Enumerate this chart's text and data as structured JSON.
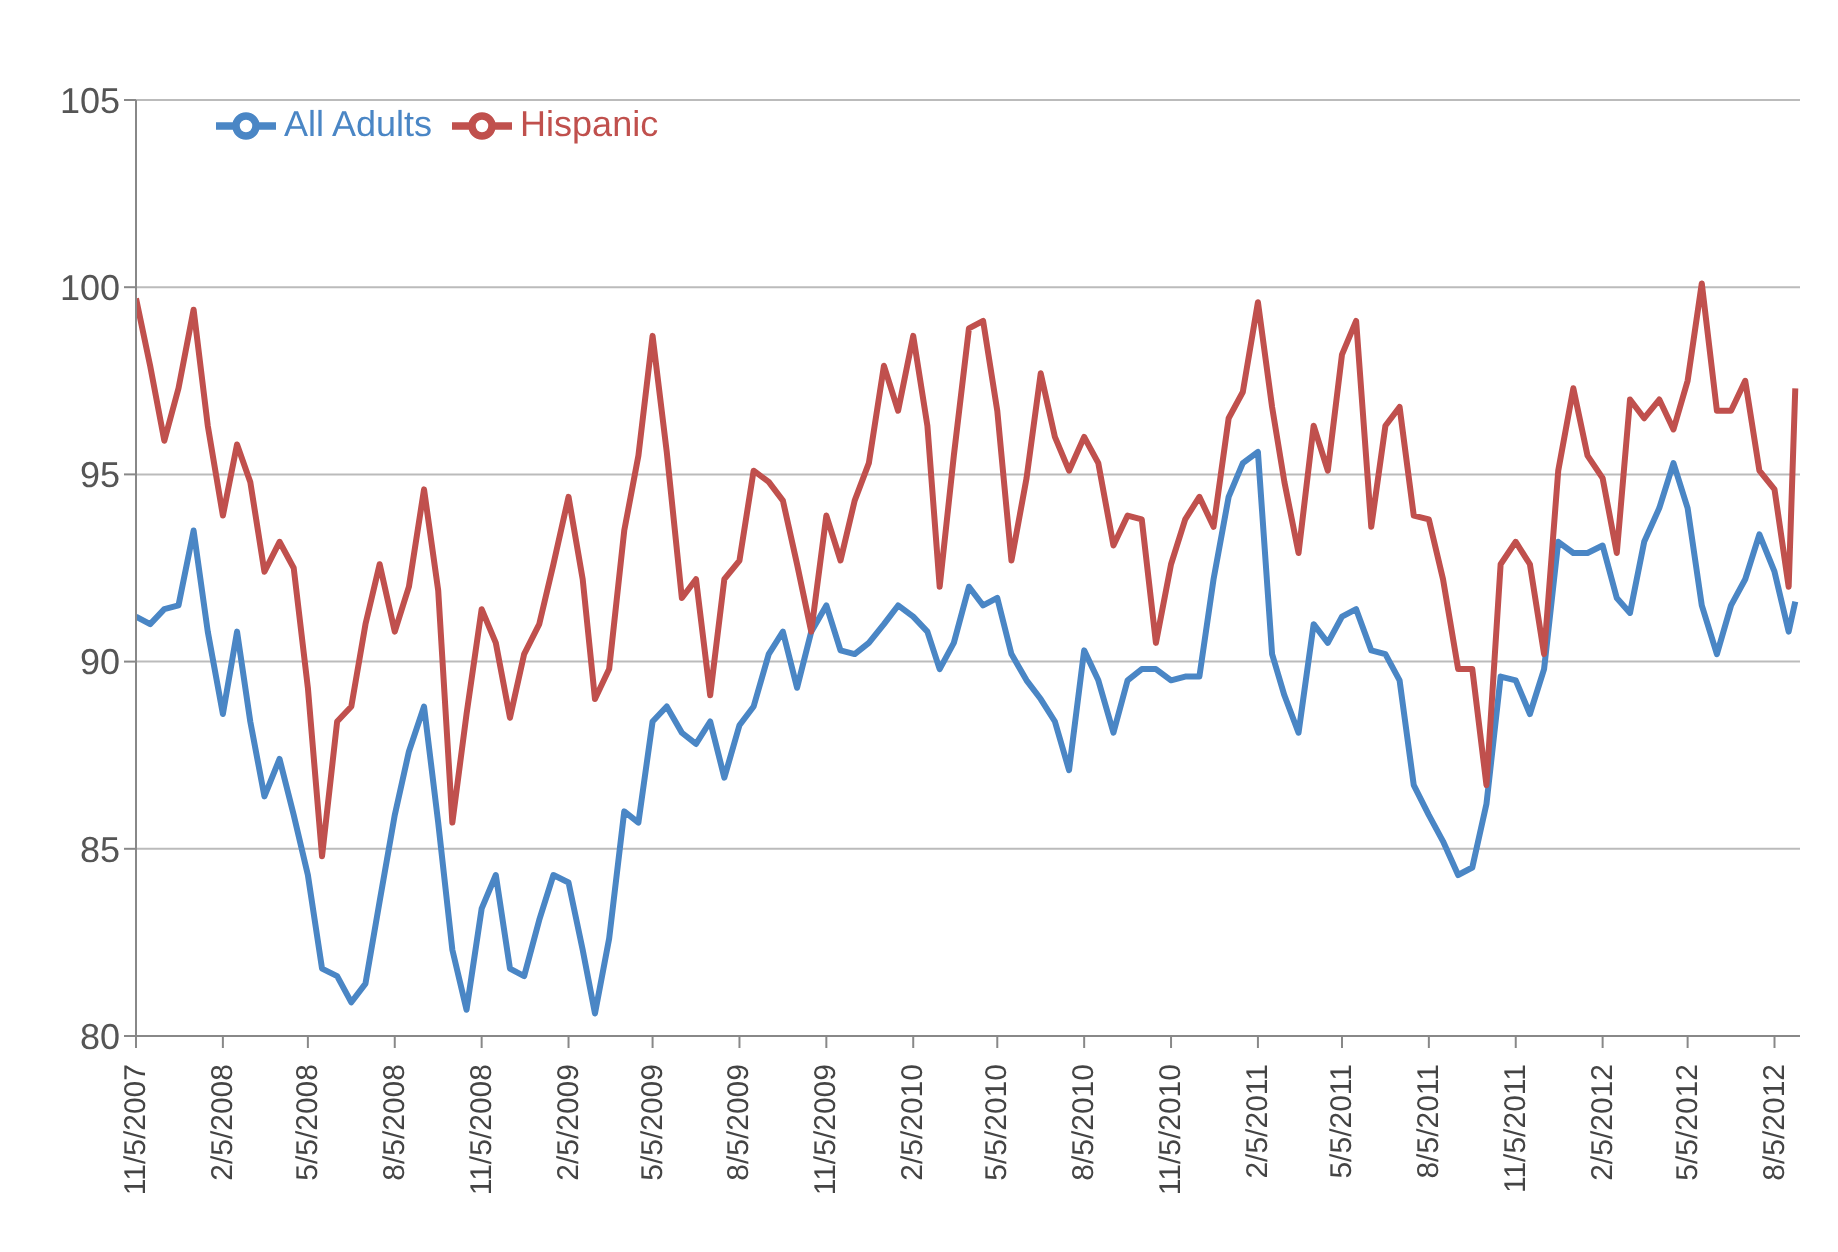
{
  "chart_data": {
    "type": "line",
    "marker": "none",
    "line_style": "solid",
    "grid": "y",
    "legend": "top left",
    "x": [
      "2007-11-05",
      "2007-11-20",
      "2007-12-05",
      "2007-12-20",
      "2008-01-05",
      "2008-01-20",
      "2008-02-05",
      "2008-02-20",
      "2008-03-05",
      "2008-03-20",
      "2008-04-05",
      "2008-04-20",
      "2008-05-05",
      "2008-05-20",
      "2008-06-05",
      "2008-06-20",
      "2008-07-05",
      "2008-07-20",
      "2008-08-05",
      "2008-08-20",
      "2008-09-05",
      "2008-09-20",
      "2008-10-05",
      "2008-10-20",
      "2008-11-05",
      "2008-11-20",
      "2008-12-05",
      "2008-12-20",
      "2009-01-05",
      "2009-01-20",
      "2009-02-05",
      "2009-02-20",
      "2009-03-05",
      "2009-03-20",
      "2009-04-05",
      "2009-04-20",
      "2009-05-05",
      "2009-05-20",
      "2009-06-05",
      "2009-06-20",
      "2009-07-05",
      "2009-07-20",
      "2009-08-05",
      "2009-08-20",
      "2009-09-05",
      "2009-09-20",
      "2009-10-05",
      "2009-10-20",
      "2009-11-05",
      "2009-11-20",
      "2009-12-05",
      "2009-12-20",
      "2010-01-05",
      "2010-01-20",
      "2010-02-05",
      "2010-02-20",
      "2010-03-05",
      "2010-03-20",
      "2010-04-05",
      "2010-04-20",
      "2010-05-05",
      "2010-05-20",
      "2010-06-05",
      "2010-06-20",
      "2010-07-05",
      "2010-07-20",
      "2010-08-05",
      "2010-08-20",
      "2010-09-05",
      "2010-09-20",
      "2010-10-05",
      "2010-10-20",
      "2010-11-05",
      "2010-11-20",
      "2010-12-05",
      "2010-12-20",
      "2011-01-05",
      "2011-01-20",
      "2011-02-05",
      "2011-02-20",
      "2011-03-05",
      "2011-03-20",
      "2011-04-05",
      "2011-04-20",
      "2011-05-05",
      "2011-05-20",
      "2011-06-05",
      "2011-06-20",
      "2011-07-05",
      "2011-07-20",
      "2011-08-05",
      "2011-08-20",
      "2011-09-05",
      "2011-09-20",
      "2011-10-05",
      "2011-10-20",
      "2011-11-05",
      "2011-11-20",
      "2011-12-05",
      "2011-12-20",
      "2012-01-05",
      "2012-01-20",
      "2012-02-05",
      "2012-02-20",
      "2012-03-05",
      "2012-03-20",
      "2012-04-05",
      "2012-04-20",
      "2012-05-05",
      "2012-05-20",
      "2012-06-05",
      "2012-06-20",
      "2012-07-05",
      "2012-07-20",
      "2012-08-05",
      "2012-08-20",
      "2012-08-27"
    ],
    "series": [
      {
        "name": "All Adults",
        "color": "#4a86c5",
        "values": [
          91.2,
          91.0,
          91.4,
          91.5,
          93.5,
          90.8,
          88.6,
          90.8,
          88.4,
          86.4,
          87.4,
          85.9,
          84.3,
          81.8,
          81.6,
          80.9,
          81.4,
          83.6,
          85.9,
          87.6,
          88.8,
          85.7,
          82.3,
          80.7,
          83.4,
          84.3,
          81.8,
          81.6,
          83.1,
          84.3,
          84.1,
          82.3,
          80.6,
          82.6,
          86.0,
          85.7,
          88.4,
          88.8,
          88.1,
          87.8,
          88.4,
          86.9,
          88.3,
          88.8,
          90.2,
          90.8,
          89.3,
          90.8,
          91.5,
          90.3,
          90.2,
          90.5,
          91.0,
          91.5,
          91.2,
          90.8,
          89.8,
          90.5,
          92.0,
          91.5,
          91.7,
          90.2,
          89.5,
          89.0,
          88.4,
          87.1,
          90.3,
          89.5,
          88.1,
          89.5,
          89.8,
          89.8,
          89.5,
          89.6,
          89.6,
          92.2,
          94.4,
          95.3,
          95.6,
          90.2,
          89.1,
          88.1,
          91.0,
          90.5,
          91.2,
          91.4,
          90.3,
          90.2,
          89.5,
          86.7,
          85.9,
          85.2,
          84.3,
          84.5,
          86.2,
          89.6,
          89.5,
          88.6,
          89.8,
          93.2,
          92.9,
          92.9,
          93.1,
          91.7,
          91.3,
          93.2,
          94.1,
          95.3,
          94.1,
          91.5,
          90.2,
          91.5,
          92.2,
          93.4,
          92.4,
          90.8,
          91.6
        ]
      },
      {
        "name": "Hispanic",
        "color": "#c0504d",
        "values": [
          99.7,
          97.9,
          95.9,
          97.3,
          99.4,
          96.3,
          93.9,
          95.8,
          94.8,
          92.4,
          93.2,
          92.5,
          89.3,
          84.8,
          88.4,
          88.8,
          91.0,
          92.6,
          90.8,
          92.0,
          94.6,
          91.9,
          85.7,
          88.6,
          91.4,
          90.5,
          88.5,
          90.2,
          91.0,
          92.6,
          94.4,
          92.2,
          89.0,
          89.8,
          93.5,
          95.5,
          98.7,
          95.6,
          91.7,
          92.2,
          89.1,
          92.2,
          92.7,
          95.1,
          94.8,
          94.3,
          92.6,
          90.8,
          93.9,
          92.7,
          94.3,
          95.3,
          97.9,
          96.7,
          98.7,
          96.3,
          92.0,
          95.5,
          98.9,
          99.1,
          96.7,
          92.7,
          94.9,
          97.7,
          96.0,
          95.1,
          96.0,
          95.3,
          93.1,
          93.9,
          93.8,
          90.5,
          92.6,
          93.8,
          94.4,
          93.6,
          96.5,
          97.2,
          99.6,
          96.8,
          94.8,
          92.9,
          96.3,
          95.1,
          98.2,
          99.1,
          93.6,
          96.3,
          96.8,
          93.9,
          93.8,
          92.2,
          89.8,
          89.8,
          86.7,
          92.6,
          93.2,
          92.6,
          90.2,
          95.1,
          97.3,
          95.5,
          94.9,
          92.9,
          97.0,
          96.5,
          97.0,
          96.2,
          97.5,
          100.1,
          96.7,
          96.7,
          97.5,
          95.1,
          94.6,
          92.0,
          97.3
        ]
      }
    ],
    "xlim": [
      "2007-11-05",
      "2012-09-01"
    ],
    "xticks": [
      {
        "value": "2007-11-05",
        "label": "11/5/2007"
      },
      {
        "value": "2008-02-05",
        "label": "2/5/2008"
      },
      {
        "value": "2008-05-05",
        "label": "5/5/2008"
      },
      {
        "value": "2008-08-05",
        "label": "8/5/2008"
      },
      {
        "value": "2008-11-05",
        "label": "11/5/2008"
      },
      {
        "value": "2009-02-05",
        "label": "2/5/2009"
      },
      {
        "value": "2009-05-05",
        "label": "5/5/2009"
      },
      {
        "value": "2009-08-05",
        "label": "8/5/2009"
      },
      {
        "value": "2009-11-05",
        "label": "11/5/2009"
      },
      {
        "value": "2010-02-05",
        "label": "2/5/2010"
      },
      {
        "value": "2010-05-05",
        "label": "5/5/2010"
      },
      {
        "value": "2010-08-05",
        "label": "8/5/2010"
      },
      {
        "value": "2010-11-05",
        "label": "11/5/2010"
      },
      {
        "value": "2011-02-05",
        "label": "2/5/2011"
      },
      {
        "value": "2011-05-05",
        "label": "5/5/2011"
      },
      {
        "value": "2011-08-05",
        "label": "8/5/2011"
      },
      {
        "value": "2011-11-05",
        "label": "11/5/2011"
      },
      {
        "value": "2012-02-05",
        "label": "2/5/2012"
      },
      {
        "value": "2012-05-05",
        "label": "5/5/2012"
      },
      {
        "value": "2012-08-05",
        "label": "8/5/2012"
      }
    ],
    "ylim": [
      80,
      105
    ],
    "yticks": [
      80,
      85,
      90,
      95,
      100,
      105
    ]
  }
}
